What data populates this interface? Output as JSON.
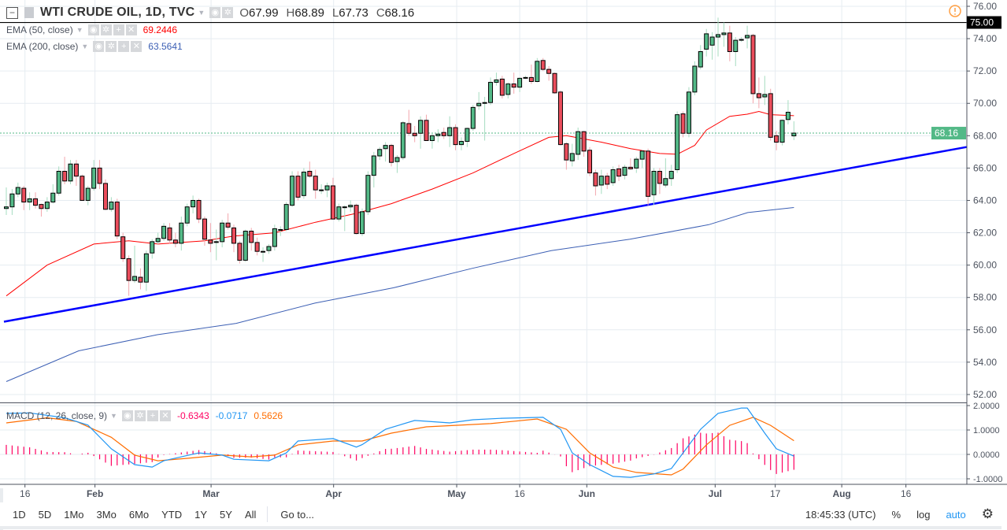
{
  "header": {
    "symbol": "WTI CRUDE OIL, 1D, TVC",
    "open_label": "O",
    "open": "67.99",
    "high_label": "H",
    "high": "68.89",
    "low_label": "L",
    "low": "67.73",
    "close_label": "C",
    "close": "68.16"
  },
  "indicators": [
    {
      "title": "EMA (50, close)",
      "value": "69.2446",
      "color": "#ff0000"
    },
    {
      "title": "EMA (200, close)",
      "value": "63.5641",
      "color": "#3c5fb4"
    }
  ],
  "macd_legend": {
    "title": "MACD (12, 26, close, 9)",
    "values": [
      {
        "value": "-0.6343",
        "color": "#ff0061"
      },
      {
        "value": "-0.0717",
        "color": "#2196f3"
      },
      {
        "value": "0.5626",
        "color": "#ff6d00"
      }
    ]
  },
  "price_axis": {
    "ticks": [
      "76.00",
      "74.00",
      "72.00",
      "70.00",
      "68.00",
      "66.00",
      "64.00",
      "62.00",
      "60.00",
      "58.00",
      "56.00",
      "54.00",
      "52.00"
    ],
    "current_price_label": "68.16",
    "hline_label": "75.00"
  },
  "macd_axis": {
    "ticks": [
      "2.0000",
      "1.0000",
      "0.0000",
      "-1.0000"
    ]
  },
  "time_axis": {
    "ticks": [
      {
        "label": "16",
        "bar": 3.2,
        "bold": false
      },
      {
        "label": "Feb",
        "bar": 15.2,
        "bold": true
      },
      {
        "label": "Mar",
        "bar": 35.1,
        "bold": true
      },
      {
        "label": "Apr",
        "bar": 56.1,
        "bold": true
      },
      {
        "label": "May",
        "bar": 77.2,
        "bold": true
      },
      {
        "label": "16",
        "bar": 88,
        "bold": false
      },
      {
        "label": "Jun",
        "bar": 99.5,
        "bold": true
      },
      {
        "label": "Jul",
        "bar": 121.5,
        "bold": true
      },
      {
        "label": "17",
        "bar": 131.8,
        "bold": false
      },
      {
        "label": "Aug",
        "bar": 143.2,
        "bold": true
      },
      {
        "label": "16",
        "bar": 154.2,
        "bold": false
      }
    ]
  },
  "toolbar": {
    "ranges": [
      "1D",
      "5D",
      "1Mo",
      "3Mo",
      "6Mo",
      "YTD",
      "1Y",
      "5Y",
      "All"
    ],
    "goto": "Go to...",
    "clock": "18:45:33 (UTC)",
    "percent": "%",
    "log": "log",
    "auto": "auto"
  },
  "chart_data": {
    "type": "candlestick",
    "title": "WTI CRUDE OIL, 1D, TVC",
    "ylim": [
      51.5,
      76.3
    ],
    "grid": true,
    "colors": {
      "up": "#53b987",
      "down": "#eb4d5c",
      "ema50": "#ff0000",
      "ema200": "#3c5fb4",
      "trendline": "#0000ff",
      "macd": "#2196f3",
      "signal": "#ff6d00",
      "histogram": "#ff0061"
    },
    "ohlc": [
      [
        63.5,
        64.8,
        63.1,
        63.6
      ],
      [
        63.6,
        64.7,
        63.1,
        64.4
      ],
      [
        64.4,
        65.1,
        64.2,
        64.8
      ],
      [
        64.75,
        64.9,
        63.4,
        63.9
      ],
      [
        63.9,
        64.5,
        63.4,
        64.1
      ],
      [
        64.1,
        64.5,
        63.5,
        63.7
      ],
      [
        63.75,
        63.8,
        63.0,
        63.5
      ],
      [
        63.5,
        64.2,
        63.3,
        63.9
      ],
      [
        63.9,
        65.0,
        63.8,
        64.45
      ],
      [
        64.45,
        66.1,
        64.3,
        65.8
      ],
      [
        65.8,
        66.7,
        65.0,
        65.2
      ],
      [
        65.2,
        66.5,
        65.0,
        66.25
      ],
      [
        66.25,
        66.5,
        64.9,
        65.5
      ],
      [
        65.5,
        65.6,
        64.0,
        64.0
      ],
      [
        64.0,
        64.9,
        63.7,
        64.75
      ],
      [
        64.75,
        66.5,
        64.6,
        66.0
      ],
      [
        66.0,
        66.5,
        64.7,
        65.05
      ],
      [
        65.05,
        65.3,
        63.4,
        63.45
      ],
      [
        63.45,
        64.2,
        63.3,
        63.9
      ],
      [
        63.9,
        64.1,
        61.6,
        61.8
      ],
      [
        61.75,
        62.0,
        60.2,
        60.4
      ],
      [
        60.4,
        60.6,
        58.1,
        59.05
      ],
      [
        59.05,
        61.2,
        58.9,
        59.3
      ],
      [
        59.25,
        59.8,
        58.5,
        58.95
      ],
      [
        58.95,
        60.9,
        58.4,
        60.7
      ],
      [
        60.75,
        61.6,
        60.4,
        61.45
      ],
      [
        61.45,
        62.0,
        61.3,
        61.65
      ],
      [
        61.65,
        62.6,
        61.5,
        62.4
      ],
      [
        62.3,
        62.6,
        61.3,
        61.55
      ],
      [
        61.55,
        62.0,
        61.1,
        61.35
      ],
      [
        61.35,
        63.0,
        60.9,
        62.6
      ],
      [
        62.6,
        63.8,
        62.4,
        63.6
      ],
      [
        63.6,
        64.3,
        63.2,
        64.0
      ],
      [
        64.0,
        64.1,
        62.6,
        62.85
      ],
      [
        62.85,
        63.0,
        61.2,
        61.6
      ],
      [
        61.55,
        62.6,
        60.8,
        61.35
      ],
      [
        61.4,
        62.2,
        60.3,
        61.45
      ],
      [
        61.45,
        62.8,
        61.1,
        62.6
      ],
      [
        62.6,
        63.2,
        62.2,
        62.35
      ],
      [
        62.3,
        62.5,
        60.8,
        61.35
      ],
      [
        61.35,
        61.5,
        60.1,
        60.3
      ],
      [
        60.3,
        62.2,
        60.2,
        62.1
      ],
      [
        62.1,
        62.3,
        60.9,
        61.4
      ],
      [
        61.4,
        61.7,
        60.6,
        60.85
      ],
      [
        60.85,
        61.1,
        60.2,
        60.85
      ],
      [
        60.9,
        61.3,
        60.7,
        61.15
      ],
      [
        61.15,
        62.5,
        60.9,
        62.25
      ],
      [
        62.2,
        62.4,
        61.8,
        62.2
      ],
      [
        62.2,
        63.9,
        62.1,
        63.75
      ],
      [
        63.7,
        65.8,
        63.6,
        65.5
      ],
      [
        65.5,
        65.8,
        64.0,
        64.2
      ],
      [
        64.3,
        66.0,
        64.1,
        65.75
      ],
      [
        65.8,
        66.4,
        65.4,
        65.5
      ],
      [
        65.5,
        65.9,
        64.1,
        64.65
      ],
      [
        64.65,
        65.0,
        64.4,
        64.65
      ],
      [
        64.65,
        65.1,
        64.2,
        64.9
      ],
      [
        64.9,
        65.4,
        62.8,
        62.85
      ],
      [
        62.85,
        63.8,
        62.7,
        63.6
      ],
      [
        63.6,
        63.7,
        62.1,
        63.6
      ],
      [
        63.6,
        64.0,
        63.3,
        63.7
      ],
      [
        63.7,
        63.8,
        61.9,
        61.95
      ],
      [
        61.95,
        63.5,
        61.8,
        63.3
      ],
      [
        63.3,
        65.8,
        63.1,
        65.55
      ],
      [
        65.55,
        67.0,
        64.8,
        66.75
      ],
      [
        66.75,
        67.3,
        66.5,
        67.15
      ],
      [
        67.2,
        67.6,
        66.4,
        67.4
      ],
      [
        67.4,
        67.5,
        66.1,
        66.35
      ],
      [
        66.4,
        66.8,
        65.7,
        66.65
      ],
      [
        66.65,
        68.9,
        66.5,
        68.8
      ],
      [
        68.75,
        69.6,
        68.0,
        68.15
      ],
      [
        68.15,
        68.6,
        67.6,
        68.0
      ],
      [
        68.15,
        69.2,
        67.2,
        68.95
      ],
      [
        68.95,
        69.3,
        67.9,
        67.7
      ],
      [
        67.7,
        68.2,
        67.2,
        68.0
      ],
      [
        68.0,
        68.4,
        67.6,
        68.1
      ],
      [
        68.2,
        68.5,
        67.8,
        68.0
      ],
      [
        68.0,
        69.2,
        67.3,
        68.5
      ],
      [
        68.5,
        68.7,
        67.1,
        67.45
      ],
      [
        67.45,
        67.9,
        67.1,
        67.65
      ],
      [
        67.65,
        68.5,
        67.3,
        68.45
      ],
      [
        68.45,
        69.9,
        68.3,
        69.75
      ],
      [
        69.85,
        70.7,
        69.6,
        70.0
      ],
      [
        70.05,
        70.4,
        67.7,
        70.05
      ],
      [
        70.05,
        71.6,
        69.9,
        71.3
      ],
      [
        71.3,
        71.9,
        71.1,
        71.45
      ],
      [
        71.5,
        71.7,
        70.3,
        70.5
      ],
      [
        70.55,
        71.3,
        70.3,
        71.2
      ],
      [
        71.2,
        71.9,
        70.6,
        71.0
      ],
      [
        71.0,
        71.6,
        70.7,
        71.55
      ],
      [
        71.6,
        71.7,
        71.5,
        71.6
      ],
      [
        71.6,
        72.4,
        71.2,
        71.35
      ],
      [
        71.35,
        72.8,
        71.3,
        72.6
      ],
      [
        72.65,
        72.8,
        72.0,
        72.1
      ],
      [
        72.1,
        72.3,
        71.4,
        71.85
      ],
      [
        71.85,
        71.9,
        70.6,
        70.65
      ],
      [
        70.7,
        70.8,
        67.4,
        67.45
      ],
      [
        67.5,
        67.6,
        65.9,
        66.5
      ],
      [
        66.45,
        67.5,
        66.1,
        66.9
      ],
      [
        66.85,
        68.5,
        66.5,
        68.25
      ],
      [
        68.25,
        68.3,
        66.7,
        67.05
      ],
      [
        67.1,
        67.3,
        65.5,
        65.7
      ],
      [
        65.7,
        65.9,
        64.3,
        64.9
      ],
      [
        64.95,
        65.9,
        64.4,
        65.5
      ],
      [
        65.5,
        65.7,
        64.7,
        65.0
      ],
      [
        65.1,
        66.1,
        64.9,
        65.9
      ],
      [
        65.95,
        66.2,
        65.2,
        65.5
      ],
      [
        65.55,
        66.2,
        65.3,
        66.05
      ],
      [
        66.05,
        66.6,
        65.9,
        65.95
      ],
      [
        66.0,
        66.7,
        65.7,
        66.55
      ],
      [
        66.55,
        67.1,
        66.0,
        67.05
      ],
      [
        67.05,
        67.2,
        63.7,
        64.25
      ],
      [
        64.35,
        66.0,
        63.7,
        65.8
      ],
      [
        65.8,
        66.0,
        64.4,
        65.05
      ],
      [
        64.95,
        66.6,
        64.8,
        65.35
      ],
      [
        65.35,
        66.2,
        64.9,
        65.8
      ],
      [
        65.9,
        69.5,
        65.7,
        69.3
      ],
      [
        69.35,
        69.5,
        67.9,
        68.15
      ],
      [
        68.15,
        71.0,
        67.9,
        70.7
      ],
      [
        70.7,
        72.6,
        70.5,
        72.3
      ],
      [
        72.25,
        73.6,
        72.1,
        73.2
      ],
      [
        73.35,
        74.6,
        72.9,
        74.3
      ],
      [
        73.6,
        74.4,
        72.7,
        74.1
      ],
      [
        74.1,
        75.3,
        72.9,
        74.25
      ],
      [
        74.25,
        75.0,
        73.5,
        74.35
      ],
      [
        74.35,
        74.8,
        72.6,
        73.2
      ],
      [
        73.2,
        74.1,
        72.3,
        73.9
      ],
      [
        73.95,
        74.1,
        73.8,
        73.95
      ],
      [
        74.05,
        74.8,
        73.4,
        74.2
      ],
      [
        74.2,
        74.3,
        70.0,
        70.6
      ],
      [
        70.6,
        71.6,
        69.7,
        70.35
      ],
      [
        70.4,
        71.7,
        69.9,
        70.55
      ],
      [
        70.6,
        70.9,
        67.7,
        67.9
      ],
      [
        68.0,
        68.3,
        67.1,
        67.6
      ],
      [
        67.6,
        69.0,
        67.4,
        68.95
      ],
      [
        69.0,
        70.2,
        68.7,
        69.45
      ],
      [
        67.99,
        68.89,
        67.73,
        68.16
      ]
    ],
    "ema50": [
      [
        0,
        58.1
      ],
      [
        7,
        60.0
      ],
      [
        15,
        61.3
      ],
      [
        21,
        61.5
      ],
      [
        26,
        61.3
      ],
      [
        34,
        61.5
      ],
      [
        39,
        61.8
      ],
      [
        46,
        62.0
      ],
      [
        53,
        62.65
      ],
      [
        60,
        63.2
      ],
      [
        66,
        63.8
      ],
      [
        73,
        64.7
      ],
      [
        80,
        65.7
      ],
      [
        87,
        66.9
      ],
      [
        93,
        67.9
      ],
      [
        96,
        68.0
      ],
      [
        99,
        67.8
      ],
      [
        102,
        67.6
      ],
      [
        107,
        67.2
      ],
      [
        112,
        66.9
      ],
      [
        115,
        66.85
      ],
      [
        118,
        67.4
      ],
      [
        120,
        68.35
      ],
      [
        124,
        69.2
      ],
      [
        127,
        69.33
      ],
      [
        129,
        69.5
      ],
      [
        131,
        69.3
      ],
      [
        135,
        69.24
      ]
    ],
    "ema200": [
      [
        0,
        52.8
      ],
      [
        12.4,
        54.7
      ],
      [
        25.9,
        55.7
      ],
      [
        39.4,
        56.4
      ],
      [
        52.9,
        57.65
      ],
      [
        66.4,
        58.6
      ],
      [
        79.9,
        59.8
      ],
      [
        93.4,
        60.9
      ],
      [
        106.9,
        61.6
      ],
      [
        120.4,
        62.5
      ],
      [
        127.1,
        63.25
      ],
      [
        135,
        63.56
      ]
    ],
    "trendline": [
      [
        -0.4,
        56.5
      ],
      [
        164.6,
        67.3
      ]
    ],
    "horizontal_line": 75.0,
    "current_price": 68.16,
    "macd": {
      "ylim": [
        -1.1,
        2.1
      ],
      "macd": [
        [
          0,
          1.68
        ],
        [
          4,
          1.7
        ],
        [
          10,
          1.5
        ],
        [
          14,
          1.2
        ],
        [
          18,
          0.23
        ],
        [
          22,
          -0.42
        ],
        [
          25,
          -0.52
        ],
        [
          27,
          -0.26
        ],
        [
          33,
          0.06
        ],
        [
          37,
          -0.03
        ],
        [
          39,
          -0.2
        ],
        [
          45,
          -0.26
        ],
        [
          48,
          0.06
        ],
        [
          50,
          0.55
        ],
        [
          56,
          0.65
        ],
        [
          60,
          0.3
        ],
        [
          61,
          0.4
        ],
        [
          65,
          1.03
        ],
        [
          70,
          1.39
        ],
        [
          76,
          1.29
        ],
        [
          80,
          1.42
        ],
        [
          85,
          1.48
        ],
        [
          92,
          1.52
        ],
        [
          95,
          1.03
        ],
        [
          97,
          0.06
        ],
        [
          100,
          -0.42
        ],
        [
          104,
          -0.9
        ],
        [
          107,
          -0.94
        ],
        [
          111,
          -0.8
        ],
        [
          114,
          -0.58
        ],
        [
          116,
          0.06
        ],
        [
          119,
          1.03
        ],
        [
          122,
          1.68
        ],
        [
          126,
          1.9
        ],
        [
          127,
          1.9
        ],
        [
          130,
          0.87
        ],
        [
          132,
          0.23
        ],
        [
          135,
          -0.07
        ]
      ],
      "signal": [
        [
          0,
          1.29
        ],
        [
          7,
          1.5
        ],
        [
          12,
          1.35
        ],
        [
          18,
          0.7
        ],
        [
          22,
          -0.03
        ],
        [
          26,
          -0.26
        ],
        [
          31,
          -0.16
        ],
        [
          37,
          -0.03
        ],
        [
          42,
          -0.1
        ],
        [
          46,
          -0.03
        ],
        [
          50,
          0.39
        ],
        [
          56,
          0.55
        ],
        [
          61,
          0.55
        ],
        [
          66,
          0.87
        ],
        [
          72,
          1.13
        ],
        [
          77,
          1.19
        ],
        [
          83,
          1.26
        ],
        [
          91,
          1.45
        ],
        [
          96,
          1.03
        ],
        [
          100,
          0.06
        ],
        [
          104,
          -0.52
        ],
        [
          108,
          -0.74
        ],
        [
          114,
          -0.84
        ],
        [
          116,
          -0.6
        ],
        [
          120,
          0.39
        ],
        [
          124,
          1.19
        ],
        [
          128,
          1.52
        ],
        [
          131,
          1.19
        ],
        [
          135,
          0.56
        ]
      ]
    }
  }
}
